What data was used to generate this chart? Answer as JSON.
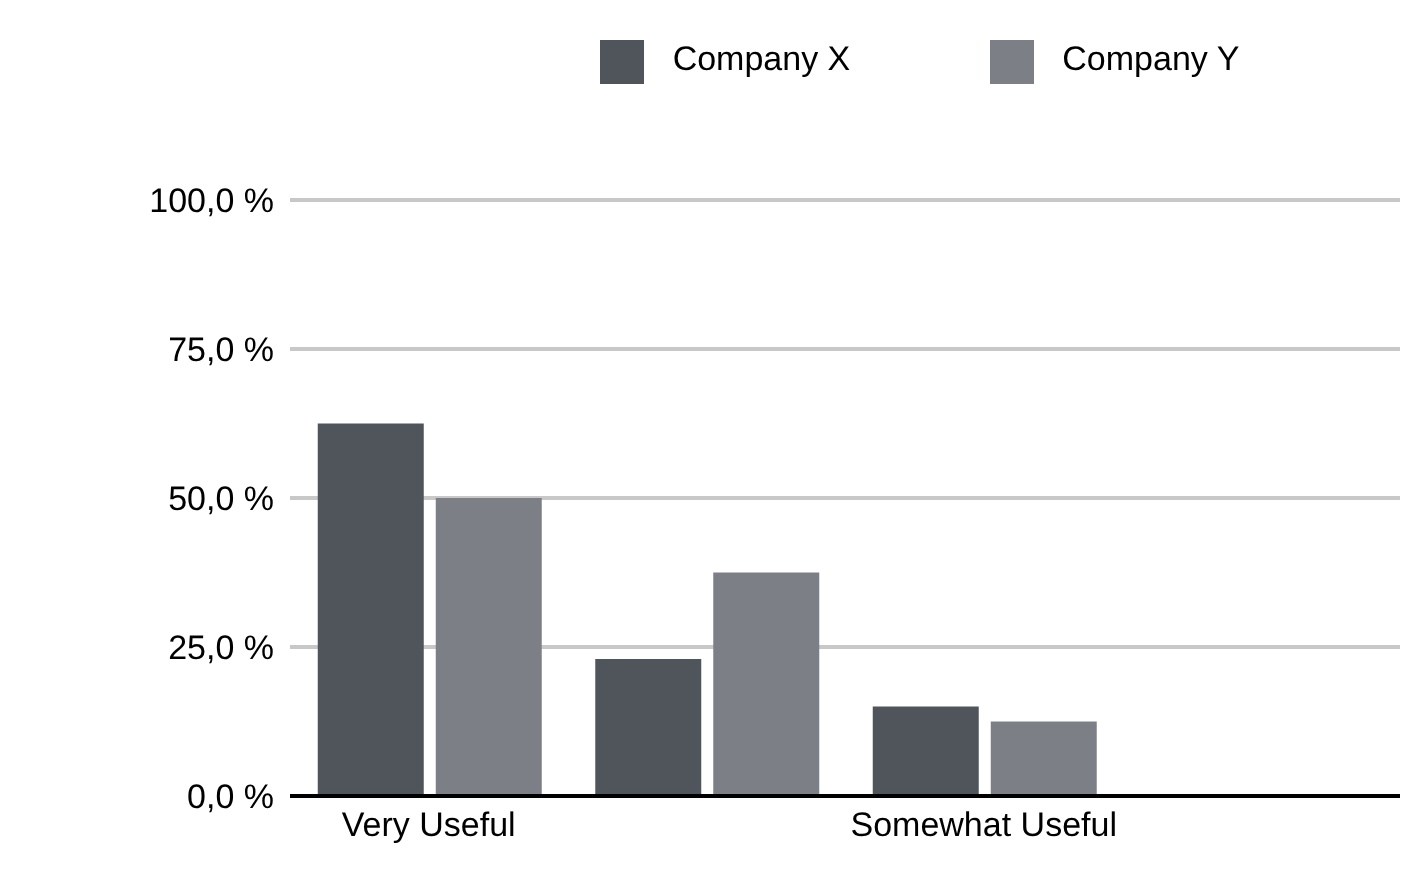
{
  "chart_data": {
    "type": "bar",
    "categories": [
      "Very Useful",
      null,
      "Somewhat Useful",
      null
    ],
    "series": [
      {
        "name": "Company X",
        "color": "#50555c",
        "values": [
          62.5,
          23,
          15,
          null
        ]
      },
      {
        "name": "Company Y",
        "color": "#7c8086",
        "values": [
          50,
          37.5,
          12.5,
          null
        ]
      }
    ],
    "ylim": [
      0,
      100
    ],
    "yticks": [
      {
        "value": 0,
        "label": "0,0 %"
      },
      {
        "value": 25,
        "label": "25,0 %"
      },
      {
        "value": 50,
        "label": "50,0 %"
      },
      {
        "value": 75,
        "label": "75,0 %"
      },
      {
        "value": 100,
        "label": "100,0 %"
      }
    ],
    "grid": "y",
    "legend": "top"
  }
}
